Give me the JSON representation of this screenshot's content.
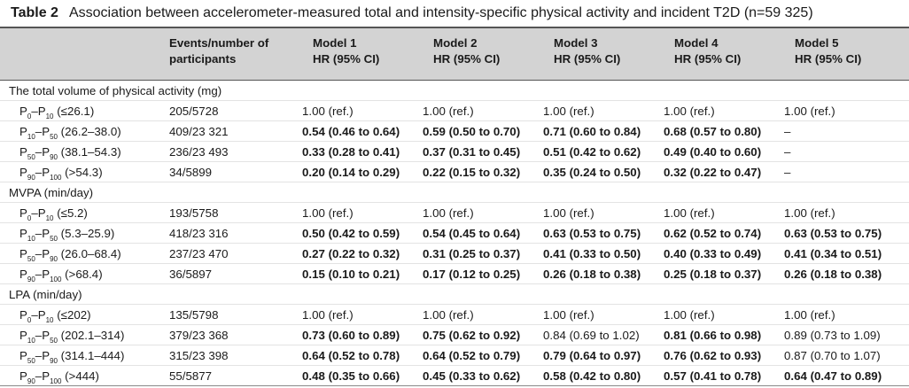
{
  "title": {
    "number": "Table 2",
    "text": "Association between accelerometer-measured total and intensity-specific physical activity and incident T2D (n=59 325)"
  },
  "header": {
    "events": [
      "Events/number of",
      "participants"
    ],
    "models": [
      [
        "Model 1",
        "HR (95% CI)"
      ],
      [
        "Model 2",
        "HR (95% CI)"
      ],
      [
        "Model 3",
        "HR (95% CI)"
      ],
      [
        "Model 4",
        "HR (95% CI)"
      ],
      [
        "Model 5",
        "HR (95% CI)"
      ]
    ]
  },
  "sections": [
    {
      "label": "The total volume of physical activity (mg)",
      "rows": [
        {
          "p1": "0",
          "p2": "10",
          "range": "(≤26.1)",
          "events": "205/5728",
          "cells": [
            [
              "1.00 (ref.)",
              false
            ],
            [
              "1.00 (ref.)",
              false
            ],
            [
              "1.00 (ref.)",
              false
            ],
            [
              "1.00 (ref.)",
              false
            ],
            [
              "1.00 (ref.)",
              false
            ]
          ]
        },
        {
          "p1": "10",
          "p2": "50",
          "range": "(26.2–38.0)",
          "events": "409/23 321",
          "cells": [
            [
              "0.54 (0.46 to 0.64)",
              true
            ],
            [
              "0.59 (0.50 to 0.70)",
              true
            ],
            [
              "0.71 (0.60 to 0.84)",
              true
            ],
            [
              "0.68 (0.57 to 0.80)",
              true
            ],
            [
              "–",
              false
            ]
          ]
        },
        {
          "p1": "50",
          "p2": "90",
          "range": "(38.1–54.3)",
          "events": "236/23 493",
          "cells": [
            [
              "0.33 (0.28 to 0.41)",
              true
            ],
            [
              "0.37 (0.31 to 0.45)",
              true
            ],
            [
              "0.51 (0.42 to 0.62)",
              true
            ],
            [
              "0.49 (0.40 to 0.60)",
              true
            ],
            [
              "–",
              false
            ]
          ]
        },
        {
          "p1": "90",
          "p2": "100",
          "range": "(>54.3)",
          "events": "34/5899",
          "cells": [
            [
              "0.20 (0.14 to 0.29)",
              true
            ],
            [
              "0.22 (0.15 to 0.32)",
              true
            ],
            [
              "0.35 (0.24 to 0.50)",
              true
            ],
            [
              "0.32 (0.22 to 0.47)",
              true
            ],
            [
              "–",
              false
            ]
          ]
        }
      ]
    },
    {
      "label": "MVPA (min/day)",
      "rows": [
        {
          "p1": "0",
          "p2": "10",
          "range": "(≤5.2)",
          "events": "193/5758",
          "cells": [
            [
              "1.00 (ref.)",
              false
            ],
            [
              "1.00 (ref.)",
              false
            ],
            [
              "1.00 (ref.)",
              false
            ],
            [
              "1.00 (ref.)",
              false
            ],
            [
              "1.00 (ref.)",
              false
            ]
          ]
        },
        {
          "p1": "10",
          "p2": "50",
          "range": "(5.3–25.9)",
          "events": "418/23 316",
          "cells": [
            [
              "0.50 (0.42 to 0.59)",
              true
            ],
            [
              "0.54 (0.45 to 0.64)",
              true
            ],
            [
              "0.63 (0.53 to 0.75)",
              true
            ],
            [
              "0.62 (0.52 to 0.74)",
              true
            ],
            [
              "0.63 (0.53 to 0.75)",
              true
            ]
          ]
        },
        {
          "p1": "50",
          "p2": "90",
          "range": "(26.0–68.4)",
          "events": "237/23 470",
          "cells": [
            [
              "0.27 (0.22 to 0.32)",
              true
            ],
            [
              "0.31 (0.25 to 0.37)",
              true
            ],
            [
              "0.41 (0.33 to 0.50)",
              true
            ],
            [
              "0.40 (0.33 to 0.49)",
              true
            ],
            [
              "0.41 (0.34 to 0.51)",
              true
            ]
          ]
        },
        {
          "p1": "90",
          "p2": "100",
          "range": "(>68.4)",
          "events": "36/5897",
          "cells": [
            [
              "0.15 (0.10 to 0.21)",
              true
            ],
            [
              "0.17 (0.12 to 0.25)",
              true
            ],
            [
              "0.26 (0.18 to 0.38)",
              true
            ],
            [
              "0.25 (0.18 to 0.37)",
              true
            ],
            [
              "0.26 (0.18 to 0.38)",
              true
            ]
          ]
        }
      ]
    },
    {
      "label": "LPA (min/day)",
      "rows": [
        {
          "p1": "0",
          "p2": "10",
          "range": "(≤202)",
          "events": "135/5798",
          "cells": [
            [
              "1.00 (ref.)",
              false
            ],
            [
              "1.00 (ref.)",
              false
            ],
            [
              "1.00 (ref.)",
              false
            ],
            [
              "1.00 (ref.)",
              false
            ],
            [
              "1.00 (ref.)",
              false
            ]
          ]
        },
        {
          "p1": "10",
          "p2": "50",
          "range": "(202.1–314)",
          "events": "379/23 368",
          "cells": [
            [
              "0.73 (0.60 to 0.89)",
              true
            ],
            [
              "0.75 (0.62 to 0.92)",
              true
            ],
            [
              "0.84 (0.69 to 1.02)",
              false
            ],
            [
              "0.81 (0.66 to 0.98)",
              true
            ],
            [
              "0.89 (0.73 to 1.09)",
              false
            ]
          ]
        },
        {
          "p1": "50",
          "p2": "90",
          "range": "(314.1–444)",
          "events": "315/23 398",
          "cells": [
            [
              "0.64 (0.52 to 0.78)",
              true
            ],
            [
              "0.64 (0.52 to 0.79)",
              true
            ],
            [
              "0.79 (0.64 to 0.97)",
              true
            ],
            [
              "0.76 (0.62 to 0.93)",
              true
            ],
            [
              "0.87 (0.70 to 1.07)",
              false
            ]
          ]
        },
        {
          "p1": "90",
          "p2": "100",
          "range": "(>444)",
          "events": "55/5877",
          "cells": [
            [
              "0.48 (0.35 to 0.66)",
              true
            ],
            [
              "0.45 (0.33 to 0.62)",
              true
            ],
            [
              "0.58 (0.42 to 0.80)",
              true
            ],
            [
              "0.57 (0.41 to 0.78)",
              true
            ],
            [
              "0.64 (0.47 to 0.89)",
              true
            ]
          ]
        }
      ]
    }
  ]
}
